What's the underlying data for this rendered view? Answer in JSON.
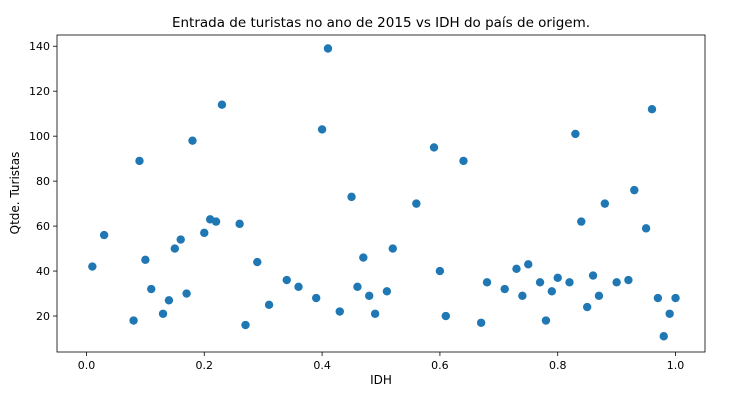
{
  "chart_data": {
    "type": "scatter",
    "title": "Entrada de turistas no ano de 2015 vs IDH do país de origem.",
    "xlabel": "IDH",
    "ylabel": "Qtde. Turistas",
    "xlim": [
      -0.05,
      1.05
    ],
    "ylim": [
      4,
      145
    ],
    "xticks": [
      "0.0",
      "0.2",
      "0.4",
      "0.6",
      "0.8",
      "1.0"
    ],
    "yticks": [
      "20",
      "40",
      "60",
      "80",
      "100",
      "120",
      "140"
    ],
    "grid": false,
    "marker_color": "#1f77b4",
    "points": [
      {
        "x": 0.01,
        "y": 42
      },
      {
        "x": 0.03,
        "y": 56
      },
      {
        "x": 0.08,
        "y": 18
      },
      {
        "x": 0.09,
        "y": 89
      },
      {
        "x": 0.1,
        "y": 45
      },
      {
        "x": 0.11,
        "y": 32
      },
      {
        "x": 0.13,
        "y": 21
      },
      {
        "x": 0.14,
        "y": 27
      },
      {
        "x": 0.15,
        "y": 50
      },
      {
        "x": 0.16,
        "y": 54
      },
      {
        "x": 0.17,
        "y": 30
      },
      {
        "x": 0.18,
        "y": 98
      },
      {
        "x": 0.2,
        "y": 57
      },
      {
        "x": 0.21,
        "y": 63
      },
      {
        "x": 0.22,
        "y": 62
      },
      {
        "x": 0.23,
        "y": 114
      },
      {
        "x": 0.26,
        "y": 61
      },
      {
        "x": 0.27,
        "y": 16
      },
      {
        "x": 0.29,
        "y": 44
      },
      {
        "x": 0.31,
        "y": 25
      },
      {
        "x": 0.34,
        "y": 36
      },
      {
        "x": 0.36,
        "y": 33
      },
      {
        "x": 0.39,
        "y": 28
      },
      {
        "x": 0.4,
        "y": 103
      },
      {
        "x": 0.41,
        "y": 139
      },
      {
        "x": 0.43,
        "y": 22
      },
      {
        "x": 0.45,
        "y": 73
      },
      {
        "x": 0.46,
        "y": 33
      },
      {
        "x": 0.47,
        "y": 46
      },
      {
        "x": 0.48,
        "y": 29
      },
      {
        "x": 0.49,
        "y": 21
      },
      {
        "x": 0.51,
        "y": 31
      },
      {
        "x": 0.52,
        "y": 50
      },
      {
        "x": 0.56,
        "y": 70
      },
      {
        "x": 0.59,
        "y": 95
      },
      {
        "x": 0.6,
        "y": 40
      },
      {
        "x": 0.61,
        "y": 20
      },
      {
        "x": 0.64,
        "y": 89
      },
      {
        "x": 0.67,
        "y": 17
      },
      {
        "x": 0.68,
        "y": 35
      },
      {
        "x": 0.71,
        "y": 32
      },
      {
        "x": 0.73,
        "y": 41
      },
      {
        "x": 0.74,
        "y": 29
      },
      {
        "x": 0.75,
        "y": 43
      },
      {
        "x": 0.77,
        "y": 35
      },
      {
        "x": 0.78,
        "y": 18
      },
      {
        "x": 0.79,
        "y": 31
      },
      {
        "x": 0.8,
        "y": 37
      },
      {
        "x": 0.82,
        "y": 35
      },
      {
        "x": 0.83,
        "y": 101
      },
      {
        "x": 0.84,
        "y": 62
      },
      {
        "x": 0.85,
        "y": 24
      },
      {
        "x": 0.86,
        "y": 38
      },
      {
        "x": 0.87,
        "y": 29
      },
      {
        "x": 0.88,
        "y": 70
      },
      {
        "x": 0.9,
        "y": 35
      },
      {
        "x": 0.92,
        "y": 36
      },
      {
        "x": 0.93,
        "y": 76
      },
      {
        "x": 0.95,
        "y": 59
      },
      {
        "x": 0.96,
        "y": 112
      },
      {
        "x": 0.97,
        "y": 28
      },
      {
        "x": 0.98,
        "y": 11
      },
      {
        "x": 0.99,
        "y": 21
      },
      {
        "x": 1.0,
        "y": 28
      }
    ]
  }
}
